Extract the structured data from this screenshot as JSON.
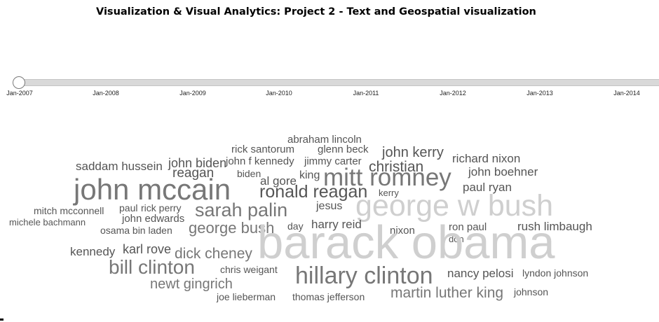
{
  "page": {
    "title": "Visualization & Visual Analytics: Project 2 - Text and Geospatial visualization"
  },
  "timeline": {
    "selected": "Jan-2007",
    "ticks": [
      "Jan-2007",
      "Jan-2008",
      "Jan-2009",
      "Jan-2010",
      "Jan-2011",
      "Jan-2012",
      "Jan-2013",
      "Jan-2014"
    ]
  },
  "colors": {
    "dark": "#555555",
    "mid": "#777777",
    "light": "#cfcfcf",
    "track": "#d9d9d9"
  },
  "word_cloud": {
    "words": [
      {
        "text": "abraham lincoln",
        "tone": "dark"
      },
      {
        "text": "rick santorum",
        "tone": "dark"
      },
      {
        "text": "glenn beck",
        "tone": "dark"
      },
      {
        "text": "john kerry",
        "tone": "dark"
      },
      {
        "text": "john f kennedy",
        "tone": "dark"
      },
      {
        "text": "jimmy carter",
        "tone": "dark"
      },
      {
        "text": "richard nixon",
        "tone": "dark"
      },
      {
        "text": "saddam hussein",
        "tone": "dark"
      },
      {
        "text": "john biden",
        "tone": "dark"
      },
      {
        "text": "christian",
        "tone": "dark"
      },
      {
        "text": "reagan",
        "tone": "dark"
      },
      {
        "text": "biden",
        "tone": "dark"
      },
      {
        "text": "king",
        "tone": "dark"
      },
      {
        "text": "mitt romney",
        "tone": "mid"
      },
      {
        "text": "john boehner",
        "tone": "dark"
      },
      {
        "text": "al gore",
        "tone": "dark"
      },
      {
        "text": "john mccain",
        "tone": "mid"
      },
      {
        "text": "ronald reagan",
        "tone": "dark"
      },
      {
        "text": "paul ryan",
        "tone": "dark"
      },
      {
        "text": "kerry",
        "tone": "dark"
      },
      {
        "text": "jesus",
        "tone": "dark"
      },
      {
        "text": "george w bush",
        "tone": "light"
      },
      {
        "text": "mitch mcconnell",
        "tone": "dark"
      },
      {
        "text": "paul",
        "tone": "dark"
      },
      {
        "text": "rick perry",
        "tone": "dark"
      },
      {
        "text": "sarah palin",
        "tone": "mid"
      },
      {
        "text": "john edwards",
        "tone": "dark"
      },
      {
        "text": "michele bachmann",
        "tone": "dark"
      },
      {
        "text": "osama bin laden",
        "tone": "dark"
      },
      {
        "text": "george bush",
        "tone": "mid"
      },
      {
        "text": "day",
        "tone": "dark"
      },
      {
        "text": "harry reid",
        "tone": "dark"
      },
      {
        "text": "nixon",
        "tone": "dark"
      },
      {
        "text": "ron paul",
        "tone": "dark"
      },
      {
        "text": "rush limbaugh",
        "tone": "dark"
      },
      {
        "text": "don",
        "tone": "dark"
      },
      {
        "text": "barack obama",
        "tone": "light"
      },
      {
        "text": "kennedy",
        "tone": "dark"
      },
      {
        "text": "karl rove",
        "tone": "dark"
      },
      {
        "text": "dick cheney",
        "tone": "mid"
      },
      {
        "text": "bill clinton",
        "tone": "mid"
      },
      {
        "text": "chris weigant",
        "tone": "dark"
      },
      {
        "text": "hillary clinton",
        "tone": "mid"
      },
      {
        "text": "nancy pelosi",
        "tone": "dark"
      },
      {
        "text": "lyndon johnson",
        "tone": "dark"
      },
      {
        "text": "newt gingrich",
        "tone": "mid"
      },
      {
        "text": "martin luther king",
        "tone": "mid"
      },
      {
        "text": "johnson",
        "tone": "dark"
      },
      {
        "text": "joe lieberman",
        "tone": "dark"
      },
      {
        "text": "thomas jefferson",
        "tone": "dark"
      }
    ]
  }
}
